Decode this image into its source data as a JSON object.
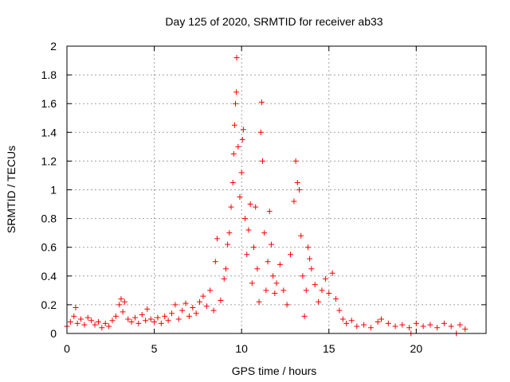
{
  "chart_data": {
    "type": "scatter",
    "title": "Day 125 of 2020, SRMTID for receiver ab33",
    "xlabel": "GPS time / hours",
    "ylabel": "SRMTID / TECUs",
    "xlim": [
      0,
      24
    ],
    "ylim": [
      0,
      2
    ],
    "x_ticks": [
      0,
      5,
      10,
      15,
      20
    ],
    "x_tick_labels": [
      "0",
      "5",
      "10",
      "15",
      "20"
    ],
    "y_ticks": [
      0,
      0.2,
      0.4,
      0.6,
      0.8,
      1,
      1.2,
      1.4,
      1.6,
      1.8,
      2
    ],
    "y_tick_labels": [
      "0",
      "0.2",
      "0.4",
      "0.6",
      "0.8",
      "1",
      "1.2",
      "1.4",
      "1.6",
      "1.8",
      "2"
    ],
    "grid": true,
    "marker": "plus",
    "color": "#ff0000",
    "series": [
      {
        "name": "SRMTID",
        "points": [
          [
            0.0,
            0.05
          ],
          [
            0.2,
            0.08
          ],
          [
            0.4,
            0.12
          ],
          [
            0.5,
            0.18
          ],
          [
            0.6,
            0.07
          ],
          [
            0.8,
            0.1
          ],
          [
            1.0,
            0.06
          ],
          [
            1.2,
            0.11
          ],
          [
            1.4,
            0.09
          ],
          [
            1.6,
            0.06
          ],
          [
            1.8,
            0.08
          ],
          [
            2.0,
            0.04
          ],
          [
            2.2,
            0.07
          ],
          [
            2.4,
            0.05
          ],
          [
            2.6,
            0.09
          ],
          [
            2.8,
            0.12
          ],
          [
            3.0,
            0.2
          ],
          [
            3.1,
            0.24
          ],
          [
            3.2,
            0.15
          ],
          [
            3.3,
            0.22
          ],
          [
            3.5,
            0.1
          ],
          [
            3.7,
            0.08
          ],
          [
            3.9,
            0.11
          ],
          [
            4.1,
            0.07
          ],
          [
            4.3,
            0.13
          ],
          [
            4.5,
            0.09
          ],
          [
            4.6,
            0.17
          ],
          [
            4.8,
            0.1
          ],
          [
            5.0,
            0.08
          ],
          [
            5.2,
            0.11
          ],
          [
            5.4,
            0.07
          ],
          [
            5.6,
            0.12
          ],
          [
            5.8,
            0.09
          ],
          [
            6.0,
            0.14
          ],
          [
            6.2,
            0.2
          ],
          [
            6.4,
            0.1
          ],
          [
            6.6,
            0.16
          ],
          [
            6.8,
            0.21
          ],
          [
            7.0,
            0.12
          ],
          [
            7.2,
            0.18
          ],
          [
            7.4,
            0.14
          ],
          [
            7.6,
            0.22
          ],
          [
            7.8,
            0.26
          ],
          [
            8.0,
            0.19
          ],
          [
            8.2,
            0.3
          ],
          [
            8.4,
            0.16
          ],
          [
            8.5,
            0.5
          ],
          [
            8.6,
            0.66
          ],
          [
            8.8,
            0.23
          ],
          [
            9.0,
            0.38
          ],
          [
            9.1,
            0.45
          ],
          [
            9.2,
            0.62
          ],
          [
            9.3,
            0.7
          ],
          [
            9.4,
            0.88
          ],
          [
            9.5,
            1.05
          ],
          [
            9.55,
            1.25
          ],
          [
            9.6,
            1.45
          ],
          [
            9.65,
            1.6
          ],
          [
            9.7,
            1.68
          ],
          [
            9.72,
            1.92
          ],
          [
            9.8,
            1.3
          ],
          [
            9.9,
            0.95
          ],
          [
            10.0,
            1.12
          ],
          [
            10.05,
            1.35
          ],
          [
            10.1,
            1.42
          ],
          [
            10.2,
            0.8
          ],
          [
            10.3,
            0.55
          ],
          [
            10.4,
            0.72
          ],
          [
            10.5,
            0.9
          ],
          [
            10.6,
            0.35
          ],
          [
            10.7,
            0.6
          ],
          [
            10.8,
            0.88
          ],
          [
            10.9,
            0.45
          ],
          [
            11.0,
            0.22
          ],
          [
            11.1,
            1.4
          ],
          [
            11.15,
            1.61
          ],
          [
            11.2,
            1.2
          ],
          [
            11.3,
            0.7
          ],
          [
            11.4,
            0.3
          ],
          [
            11.5,
            0.5
          ],
          [
            11.6,
            0.85
          ],
          [
            11.7,
            0.62
          ],
          [
            11.8,
            0.4
          ],
          [
            11.9,
            0.28
          ],
          [
            12.0,
            0.35
          ],
          [
            12.2,
            0.48
          ],
          [
            12.4,
            0.3
          ],
          [
            12.6,
            0.2
          ],
          [
            12.8,
            0.55
          ],
          [
            13.0,
            0.92
          ],
          [
            13.1,
            1.2
          ],
          [
            13.2,
            1.05
          ],
          [
            13.3,
            1.0
          ],
          [
            13.4,
            0.68
          ],
          [
            13.5,
            0.4
          ],
          [
            13.6,
            0.12
          ],
          [
            13.7,
            0.3
          ],
          [
            13.8,
            0.6
          ],
          [
            13.9,
            0.52
          ],
          [
            14.0,
            0.45
          ],
          [
            14.2,
            0.34
          ],
          [
            14.4,
            0.22
          ],
          [
            14.6,
            0.3
          ],
          [
            14.8,
            0.38
          ],
          [
            15.0,
            0.28
          ],
          [
            15.2,
            0.42
          ],
          [
            15.4,
            0.24
          ],
          [
            15.6,
            0.16
          ],
          [
            15.8,
            0.1
          ],
          [
            16.0,
            0.07
          ],
          [
            16.3,
            0.09
          ],
          [
            16.6,
            0.05
          ],
          [
            17.0,
            0.06
          ],
          [
            17.4,
            0.04
          ],
          [
            17.8,
            0.08
          ],
          [
            18.0,
            0.1
          ],
          [
            18.4,
            0.07
          ],
          [
            18.8,
            0.05
          ],
          [
            19.2,
            0.06
          ],
          [
            19.6,
            0.04
          ],
          [
            19.7,
            0.0
          ],
          [
            20.0,
            0.07
          ],
          [
            20.4,
            0.05
          ],
          [
            20.8,
            0.06
          ],
          [
            21.2,
            0.04
          ],
          [
            21.6,
            0.07
          ],
          [
            22.0,
            0.05
          ],
          [
            22.3,
            0.0
          ],
          [
            22.5,
            0.06
          ],
          [
            22.8,
            0.03
          ]
        ]
      }
    ]
  }
}
